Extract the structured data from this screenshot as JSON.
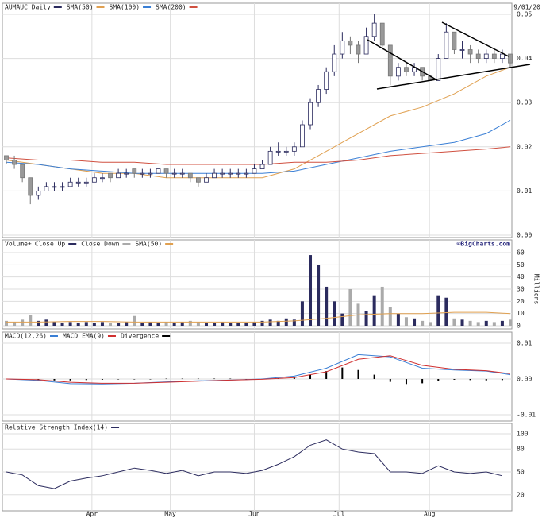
{
  "chart_data": [
    {
      "type": "candlestick",
      "title": "AUMAUC Daily",
      "color": "#2b2b5e",
      "date_label": "9/01/20",
      "ylim": [
        0,
        0.05
      ],
      "yticks": [
        {
          "value": 0,
          "label": "0.00"
        },
        0.01,
        0.02,
        0.03,
        0.04,
        0.05
      ],
      "grid": true,
      "candles": [
        [
          0.018,
          0.018,
          0.016,
          0.017
        ],
        [
          0.017,
          0.018,
          0.015,
          0.016
        ],
        [
          0.016,
          0.016,
          0.012,
          0.013
        ],
        [
          0.013,
          0.013,
          0.007,
          0.009
        ],
        [
          0.009,
          0.011,
          0.008,
          0.01
        ],
        [
          0.01,
          0.012,
          0.01,
          0.011
        ],
        [
          0.011,
          0.012,
          0.01,
          0.011
        ],
        [
          0.011,
          0.012,
          0.01,
          0.011
        ],
        [
          0.011,
          0.013,
          0.011,
          0.012
        ],
        [
          0.012,
          0.013,
          0.011,
          0.012
        ],
        [
          0.012,
          0.013,
          0.011,
          0.012
        ],
        [
          0.012,
          0.014,
          0.012,
          0.013
        ],
        [
          0.013,
          0.014,
          0.012,
          0.013
        ],
        [
          0.014,
          0.014,
          0.012,
          0.013
        ],
        [
          0.013,
          0.015,
          0.013,
          0.014
        ],
        [
          0.014,
          0.015,
          0.013,
          0.014
        ],
        [
          0.015,
          0.015,
          0.013,
          0.014
        ],
        [
          0.014,
          0.015,
          0.013,
          0.014
        ],
        [
          0.014,
          0.015,
          0.013,
          0.014
        ],
        [
          0.014,
          0.015,
          0.014,
          0.015
        ],
        [
          0.015,
          0.015,
          0.013,
          0.014
        ],
        [
          0.014,
          0.015,
          0.013,
          0.014
        ],
        [
          0.014,
          0.015,
          0.013,
          0.014
        ],
        [
          0.014,
          0.014,
          0.012,
          0.013
        ],
        [
          0.013,
          0.013,
          0.011,
          0.012
        ],
        [
          0.012,
          0.014,
          0.012,
          0.013
        ],
        [
          0.013,
          0.015,
          0.013,
          0.014
        ],
        [
          0.014,
          0.015,
          0.013,
          0.014
        ],
        [
          0.014,
          0.015,
          0.013,
          0.014
        ],
        [
          0.014,
          0.015,
          0.013,
          0.014
        ],
        [
          0.014,
          0.015,
          0.013,
          0.014
        ],
        [
          0.014,
          0.016,
          0.014,
          0.015
        ],
        [
          0.015,
          0.017,
          0.015,
          0.016
        ],
        [
          0.016,
          0.02,
          0.016,
          0.019
        ],
        [
          0.019,
          0.021,
          0.018,
          0.019
        ],
        [
          0.019,
          0.02,
          0.018,
          0.019
        ],
        [
          0.019,
          0.021,
          0.018,
          0.02
        ],
        [
          0.02,
          0.026,
          0.02,
          0.025
        ],
        [
          0.025,
          0.031,
          0.024,
          0.03
        ],
        [
          0.03,
          0.034,
          0.029,
          0.033
        ],
        [
          0.033,
          0.038,
          0.032,
          0.037
        ],
        [
          0.037,
          0.043,
          0.036,
          0.041
        ],
        [
          0.041,
          0.046,
          0.04,
          0.044
        ],
        [
          0.044,
          0.045,
          0.041,
          0.043
        ],
        [
          0.043,
          0.044,
          0.039,
          0.041
        ],
        [
          0.041,
          0.047,
          0.041,
          0.045
        ],
        [
          0.045,
          0.05,
          0.044,
          0.048
        ],
        [
          0.048,
          0.048,
          0.042,
          0.043
        ],
        [
          0.043,
          0.043,
          0.034,
          0.036
        ],
        [
          0.036,
          0.039,
          0.035,
          0.038
        ],
        [
          0.038,
          0.039,
          0.036,
          0.037
        ],
        [
          0.037,
          0.039,
          0.036,
          0.038
        ],
        [
          0.038,
          0.038,
          0.035,
          0.036
        ],
        [
          0.036,
          0.036,
          0.035,
          0.035
        ],
        [
          0.035,
          0.041,
          0.035,
          0.04
        ],
        [
          0.04,
          0.048,
          0.04,
          0.046
        ],
        [
          0.046,
          0.046,
          0.041,
          0.042
        ],
        [
          0.042,
          0.044,
          0.04,
          0.042
        ],
        [
          0.042,
          0.043,
          0.039,
          0.041
        ],
        [
          0.041,
          0.042,
          0.039,
          0.04
        ],
        [
          0.04,
          0.042,
          0.039,
          0.041
        ],
        [
          0.041,
          0.042,
          0.039,
          0.04
        ],
        [
          0.04,
          0.042,
          0.039,
          0.041
        ],
        [
          0.041,
          0.041,
          0.038,
          0.039
        ]
      ],
      "series": [
        {
          "name": "SMA(50)",
          "color": "#e0a050",
          "x": [
            0,
            4,
            8,
            12,
            16,
            20,
            24,
            28,
            32,
            36,
            40,
            44,
            48,
            52,
            56,
            60,
            63
          ],
          "values": [
            0.017,
            0.016,
            0.015,
            0.014,
            0.014,
            0.013,
            0.013,
            0.013,
            0.013,
            0.015,
            0.019,
            0.023,
            0.027,
            0.029,
            0.032,
            0.036,
            0.038
          ]
        },
        {
          "name": "SMA(100)",
          "color": "#3a7fd5",
          "x": [
            0,
            4,
            8,
            12,
            16,
            20,
            24,
            28,
            32,
            36,
            40,
            44,
            48,
            52,
            56,
            60,
            63
          ],
          "values": [
            0.0165,
            0.016,
            0.015,
            0.0145,
            0.014,
            0.014,
            0.014,
            0.014,
            0.014,
            0.0145,
            0.016,
            0.0175,
            0.019,
            0.02,
            0.021,
            0.023,
            0.026
          ]
        },
        {
          "name": "SMA(200)",
          "color": "#d05040",
          "x": [
            0,
            4,
            8,
            12,
            16,
            20,
            24,
            28,
            32,
            36,
            40,
            44,
            48,
            52,
            56,
            60,
            63
          ],
          "values": [
            0.0175,
            0.017,
            0.017,
            0.0165,
            0.0165,
            0.016,
            0.016,
            0.016,
            0.016,
            0.0165,
            0.0165,
            0.017,
            0.018,
            0.0185,
            0.019,
            0.0195,
            0.02
          ]
        }
      ]
    },
    {
      "type": "bar",
      "title": "Volume+",
      "credit": "©BigCharts.com",
      "ylabel": "Millions",
      "ylim": [
        0,
        60
      ],
      "yticks": [
        0,
        10,
        20,
        30,
        40,
        50,
        60
      ],
      "grid": true,
      "legend": [
        {
          "name": "Close Up",
          "color": "#2b2b5e"
        },
        {
          "name": "Close Down",
          "color": "#aaaaaa"
        }
      ],
      "values": [
        4,
        3,
        5,
        9,
        4,
        5,
        3,
        2,
        3,
        2,
        3,
        2,
        3,
        2,
        2,
        3,
        8,
        2,
        3,
        2,
        3,
        2,
        3,
        4,
        3,
        2,
        2,
        3,
        2,
        2,
        2,
        3,
        4,
        5,
        4,
        6,
        5,
        20,
        58,
        50,
        32,
        20,
        10,
        30,
        18,
        12,
        25,
        32,
        15,
        10,
        7,
        6,
        4,
        3,
        25,
        23,
        6,
        5,
        4,
        3,
        4,
        3,
        4,
        5
      ],
      "series": [
        {
          "name": "SMA(50)",
          "color": "#e0a050",
          "x": [
            0,
            4,
            8,
            12,
            16,
            20,
            24,
            28,
            32,
            36,
            40,
            44,
            48,
            52,
            56,
            60,
            63
          ],
          "values": [
            3,
            3,
            3.5,
            3.5,
            3,
            3,
            3,
            3,
            3,
            4,
            6,
            9,
            10,
            10,
            11,
            11,
            10
          ]
        }
      ]
    },
    {
      "type": "macd",
      "ylim": [
        -0.01,
        0.01
      ],
      "yticks": [
        -0.01,
        {
          "value": 0,
          "label": "0.00"
        },
        0.01
      ],
      "grid": true,
      "series": [
        {
          "name": "MACD(12,26)",
          "color": "#3a7fd5",
          "x": [
            0,
            4,
            8,
            12,
            16,
            20,
            24,
            28,
            32,
            36,
            40,
            44,
            48,
            52,
            56,
            60,
            63
          ],
          "values": [
            0,
            -0.0004,
            -0.0013,
            -0.0014,
            -0.0012,
            -0.0008,
            -0.0005,
            -0.0003,
            0,
            0.0008,
            0.003,
            0.0068,
            0.0062,
            0.003,
            0.0025,
            0.0022,
            0.0012
          ]
        },
        {
          "name": "MACD EMA(9)",
          "color": "#d03030",
          "x": [
            0,
            4,
            8,
            12,
            16,
            20,
            24,
            28,
            32,
            36,
            40,
            44,
            48,
            52,
            56,
            60,
            63
          ],
          "values": [
            0,
            -0.0002,
            -0.0009,
            -0.0012,
            -0.0012,
            -0.0009,
            -0.0006,
            -0.0003,
            -0.0001,
            0.0004,
            0.002,
            0.0055,
            0.0065,
            0.0038,
            0.0027,
            0.0023,
            0.0015
          ]
        }
      ],
      "histogram": {
        "name": "Divergence",
        "color": "#000000",
        "x": [
          0,
          2,
          4,
          6,
          8,
          10,
          12,
          14,
          16,
          18,
          20,
          22,
          24,
          26,
          28,
          30,
          32,
          34,
          36,
          38,
          40,
          42,
          44,
          46,
          48,
          50,
          52,
          54,
          56,
          58,
          60,
          62
        ],
        "values": [
          0,
          -0.0001,
          -0.0003,
          -0.0004,
          -0.0004,
          -0.0003,
          -0.0002,
          -0.0001,
          -0.0001,
          0,
          0.0001,
          0.0001,
          0.0001,
          0.0001,
          0.0001,
          0,
          0.0001,
          0.0002,
          0.0005,
          0.0012,
          0.0022,
          0.0032,
          0.0025,
          0.0012,
          -0.0008,
          -0.0014,
          -0.0012,
          -0.0006,
          -0.0002,
          -0.0003,
          -0.0004,
          -0.0003
        ]
      }
    },
    {
      "type": "line",
      "ylim": [
        0,
        100
      ],
      "yticks": [
        20,
        50,
        80,
        100
      ],
      "grid": true,
      "xlim": [
        0,
        63
      ],
      "xticks": [
        {
          "value": 10.7,
          "label": "Apr"
        },
        {
          "value": 20.5,
          "label": "May"
        },
        {
          "value": 31,
          "label": "Jun"
        },
        {
          "value": 41.6,
          "label": "Jul"
        },
        {
          "value": 52.9,
          "label": "Aug"
        }
      ],
      "series": [
        {
          "name": "Relative Strength Index(14)",
          "color": "#2b2b5e",
          "x": [
            0,
            2,
            4,
            6,
            8,
            10,
            12,
            14,
            16,
            18,
            20,
            22,
            24,
            26,
            28,
            30,
            32,
            34,
            36,
            38,
            40,
            42,
            44,
            46,
            48,
            50,
            52,
            54,
            56,
            58,
            60,
            62
          ],
          "values": [
            50,
            46,
            32,
            28,
            38,
            42,
            45,
            50,
            55,
            52,
            48,
            52,
            45,
            50,
            50,
            48,
            52,
            60,
            70,
            85,
            92,
            80,
            76,
            74,
            50,
            50,
            48,
            58,
            50,
            48,
            50,
            45
          ]
        }
      ]
    }
  ]
}
